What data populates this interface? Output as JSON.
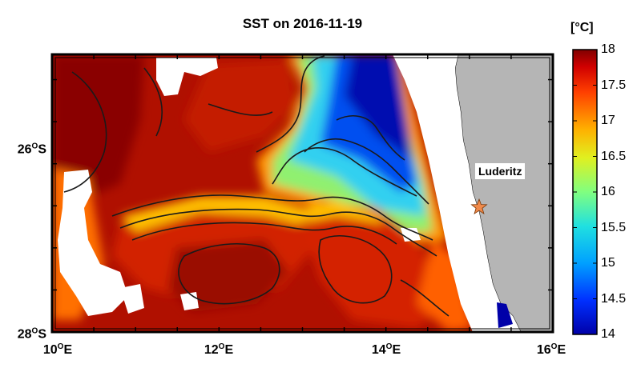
{
  "title": "SST on 2016-11-19",
  "colorbar": {
    "unit": "[°C]",
    "min": 14,
    "max": 18,
    "ticks": [
      "18",
      "17.5",
      "17",
      "16.5",
      "16",
      "15.5",
      "15",
      "14.5",
      "14"
    ]
  },
  "axes": {
    "lat_labels": [
      {
        "deg": "26",
        "hemi": "S"
      },
      {
        "deg": "28",
        "hemi": "S"
      }
    ],
    "lon_labels": [
      {
        "deg": "10",
        "hemi": "E"
      },
      {
        "deg": "12",
        "hemi": "E"
      },
      {
        "deg": "14",
        "hemi": "E"
      },
      {
        "deg": "16",
        "hemi": "E"
      }
    ]
  },
  "extent": {
    "lon_min": 10,
    "lon_max": 16,
    "lat_min": -28,
    "lat_max": -24.7
  },
  "annotations": {
    "city_label": "Luderitz",
    "city_marker": "star-icon",
    "city_marker_color": "#f08a4b"
  },
  "colors": {
    "land": "#b5b5b5",
    "warm": "#8b0000",
    "cool": "#00008b",
    "contour": "#1a1a1a"
  }
}
